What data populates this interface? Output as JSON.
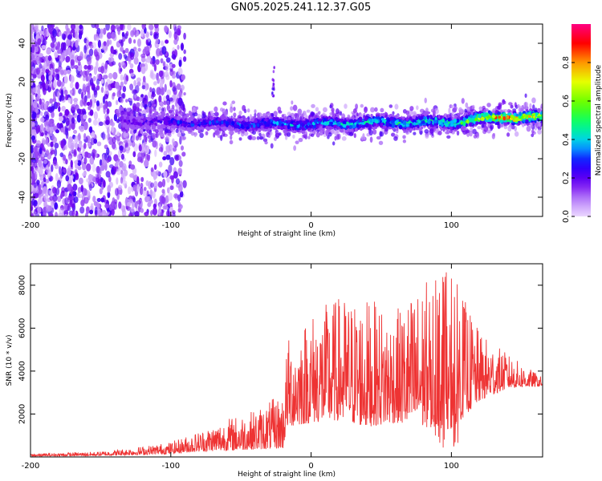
{
  "title": "GN05.2025.241.12.37.G05",
  "chart_data": [
    {
      "type": "heatmap",
      "xlabel": "Height of straight line (km)",
      "ylabel": "Frequency (Hz)",
      "xlim": [
        -200,
        165
      ],
      "ylim": [
        -50,
        50
      ],
      "x_ticks": [
        -200,
        -100,
        0,
        100
      ],
      "x_tick_labels": [
        "-200",
        "-100",
        "0",
        "100"
      ],
      "y_ticks": [
        -40,
        -20,
        0,
        20,
        40
      ],
      "y_tick_labels": [
        "-40",
        "-20",
        "0",
        "20",
        "40"
      ],
      "colorbar": {
        "label": "Normalized spectral amplitude",
        "range": [
          0.0,
          1.0
        ],
        "ticks": [
          0.0,
          0.2,
          0.4,
          0.6,
          0.8
        ],
        "tick_labels": [
          "0.0",
          "0.2",
          "0.4",
          "0.6",
          "0.8"
        ]
      },
      "ridge": {
        "description_x": [
          -135,
          -100,
          -50,
          0,
          50,
          100,
          140,
          165
        ],
        "center_hz": [
          0,
          -1,
          -2,
          -2,
          -1,
          -1,
          2,
          1
        ],
        "amplitude": [
          0.2,
          0.3,
          0.35,
          0.45,
          0.5,
          0.55,
          0.95,
          0.7
        ]
      }
    },
    {
      "type": "line",
      "xlabel": "Height of straight line (km)",
      "ylabel": "SNR (10 * v/v)",
      "xlim": [
        -200,
        165
      ],
      "ylim": [
        0,
        9000
      ],
      "x_ticks": [
        -200,
        -100,
        0,
        100
      ],
      "x_tick_labels": [
        "-200",
        "-100",
        "0",
        "100"
      ],
      "y_ticks": [
        2000,
        4000,
        6000,
        8000
      ],
      "y_tick_labels": [
        "2000",
        "4000",
        "6000",
        "8000"
      ],
      "series": [
        {
          "name": "SNR",
          "color": "#ee3333",
          "envelope_x": [
            -200,
            -150,
            -120,
            -100,
            -80,
            -60,
            -40,
            -20,
            -17,
            0,
            20,
            40,
            60,
            80,
            100,
            120,
            140,
            165
          ],
          "envelope_low": [
            30,
            60,
            100,
            150,
            250,
            300,
            350,
            400,
            1400,
            1600,
            1700,
            1400,
            1600,
            1400,
            1300,
            2600,
            3200,
            3300
          ],
          "envelope_high": [
            150,
            250,
            500,
            700,
            1200,
            1800,
            2200,
            3000,
            5500,
            6800,
            7500,
            7400,
            6800,
            8200,
            8700,
            5800,
            4800,
            3700
          ]
        }
      ]
    }
  ]
}
